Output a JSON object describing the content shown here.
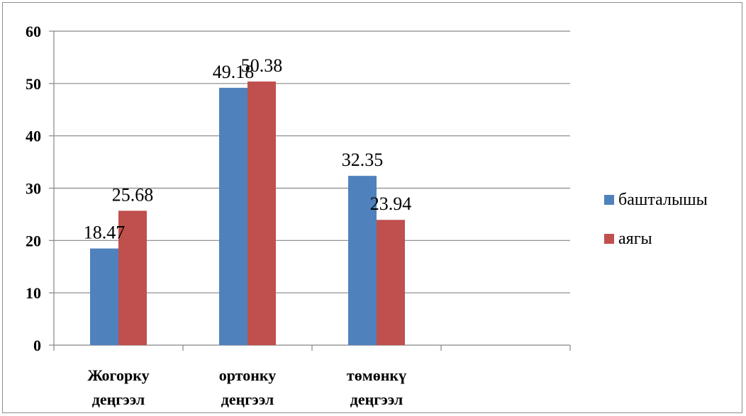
{
  "chart_data": {
    "type": "bar",
    "categories": [
      [
        "Жогорку",
        "деңгээл"
      ],
      [
        "ортонку",
        "деңгээл"
      ],
      [
        "төмөнкү",
        "деңгээл"
      ],
      [
        ""
      ]
    ],
    "series": [
      {
        "name": "башталышы",
        "color": "#4F81BD",
        "values": [
          18.47,
          49.18,
          32.35,
          null
        ]
      },
      {
        "name": "аягы",
        "color": "#C0504D",
        "values": [
          25.68,
          50.38,
          23.94,
          null
        ]
      }
    ],
    "data_labels": [
      [
        "18.47",
        "49.18",
        "32.35",
        ""
      ],
      [
        "25.68",
        "50.38",
        "23.94",
        ""
      ]
    ],
    "ylim": [
      0,
      60
    ],
    "yticks": [
      0,
      10,
      20,
      30,
      40,
      50,
      60
    ],
    "grid": true,
    "legend": "right",
    "title": "",
    "xlabel": "",
    "ylabel": ""
  }
}
